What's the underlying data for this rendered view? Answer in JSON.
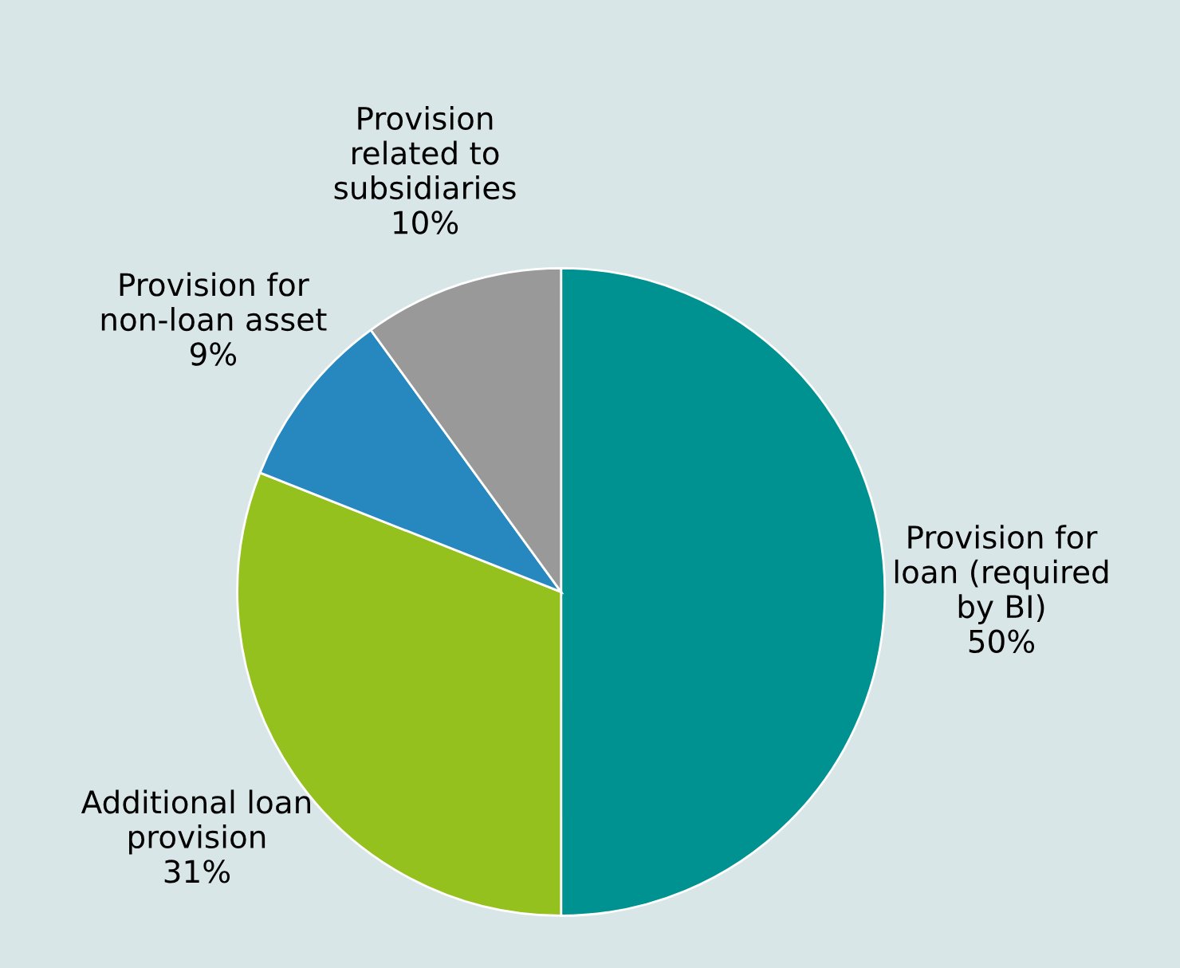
{
  "chart_data": {
    "type": "pie",
    "categories": [
      "Provision for\nloan (required\nby BI)",
      "Additional loan\nprovision",
      "Provision for\nnon-loan asset",
      "Provision\nrelated to\nsubsidiaries"
    ],
    "values": [
      50,
      31,
      9,
      10
    ],
    "value_labels": [
      "50%",
      "31%",
      "9%",
      "10%"
    ],
    "colors": [
      "#009191",
      "#95c11f",
      "#2787bf",
      "#999999"
    ]
  }
}
